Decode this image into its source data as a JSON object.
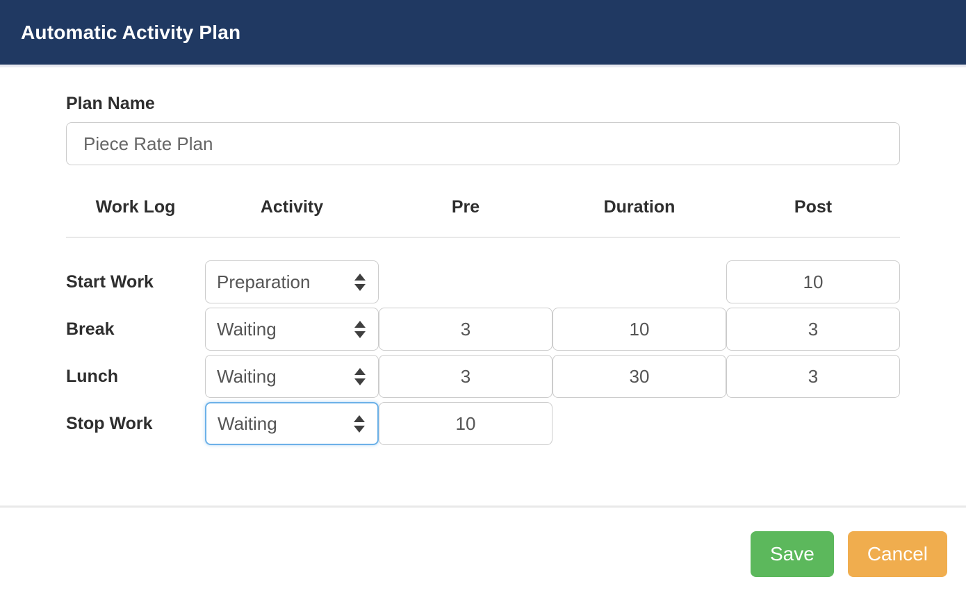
{
  "header": {
    "title": "Automatic Activity Plan"
  },
  "form": {
    "plan_name_label": "Plan Name",
    "plan_name_value": "Piece Rate Plan"
  },
  "table": {
    "headers": [
      "Work Log",
      "Activity",
      "Pre",
      "Duration",
      "Post"
    ],
    "rows": [
      {
        "work_log": "Start Work",
        "activity": "Preparation",
        "post": "10"
      },
      {
        "work_log": "Break",
        "activity": "Waiting",
        "pre": "3",
        "duration": "10",
        "post": "3"
      },
      {
        "work_log": "Lunch",
        "activity": "Waiting",
        "pre": "3",
        "duration": "30",
        "post": "3"
      },
      {
        "work_log": "Stop Work",
        "activity": "Waiting",
        "pre": "10"
      }
    ]
  },
  "footer": {
    "save_label": "Save",
    "cancel_label": "Cancel"
  },
  "colors": {
    "header_bg": "#203962",
    "save_bg": "#5cb85c",
    "cancel_bg": "#f0ad4e",
    "focus_border": "#6cb1e8"
  }
}
